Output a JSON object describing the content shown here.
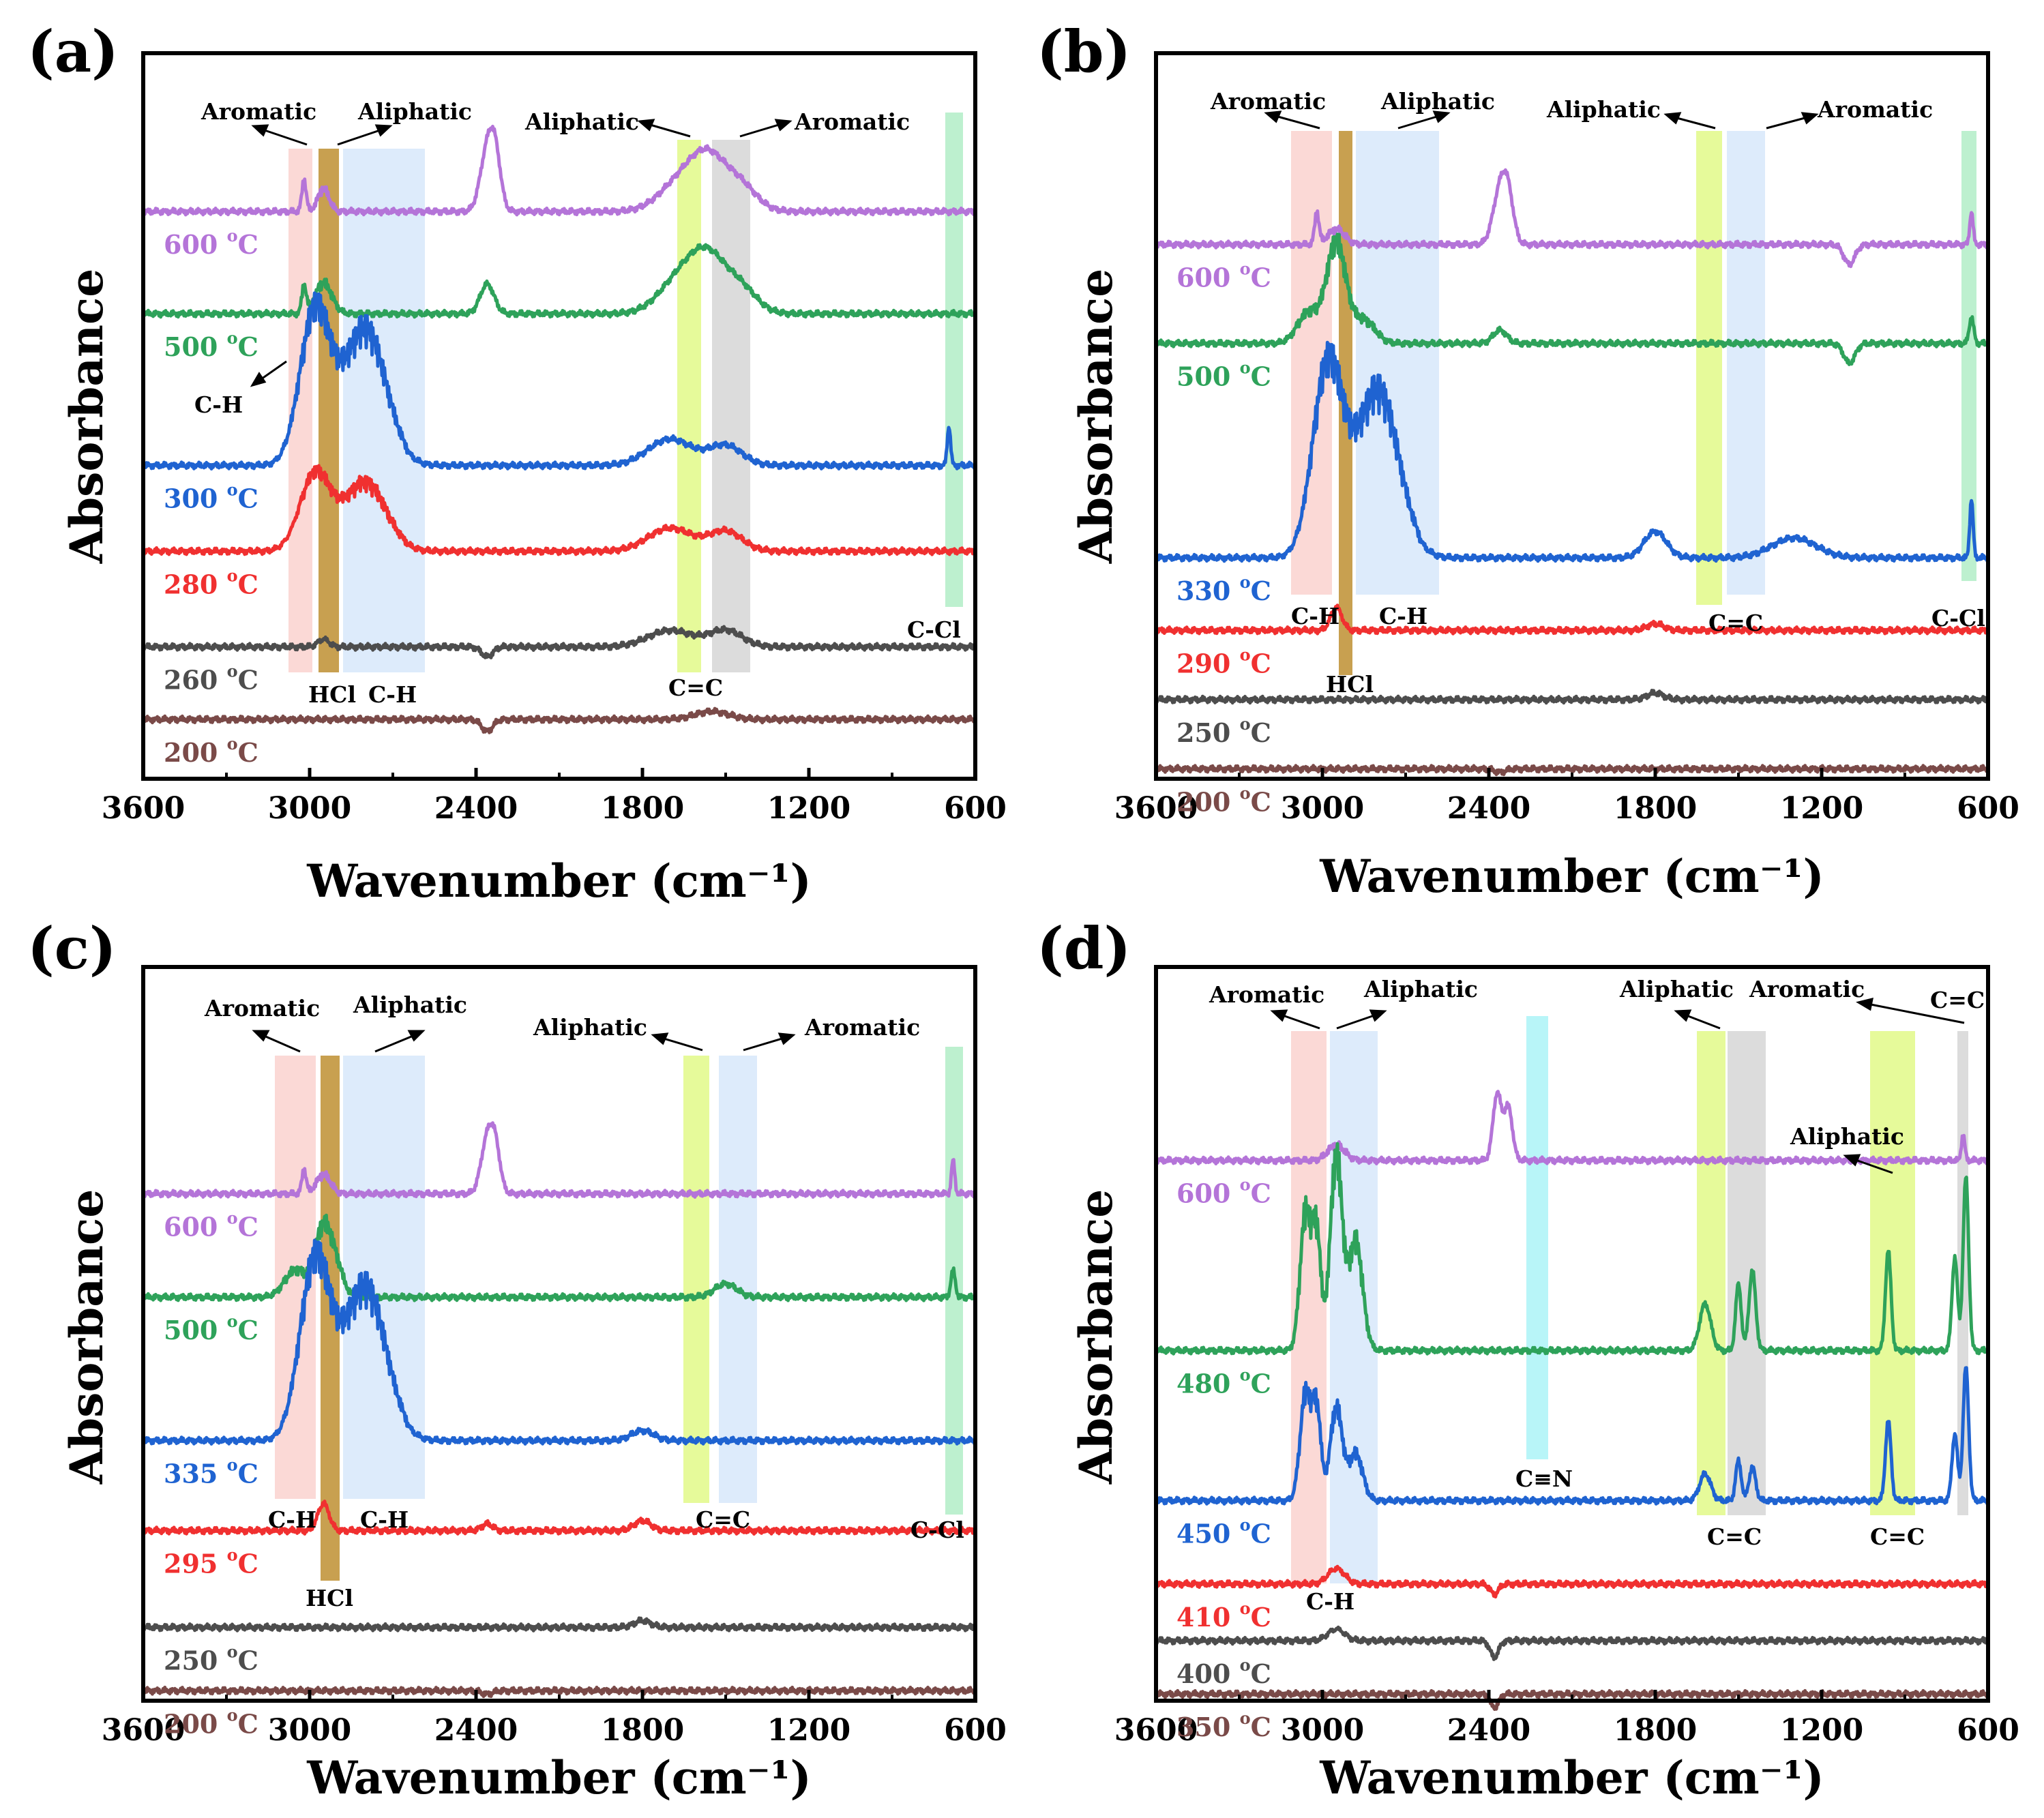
{
  "figure": {
    "panels": [
      {
        "label": "(a)",
        "xlabel": "Wavenumber (cm⁻¹)",
        "ylabel": "Absorbance",
        "xlim": [
          3600,
          600
        ],
        "xticks": [
          "3600",
          "3000",
          "2400",
          "1800",
          "1200",
          "600"
        ]
      },
      {
        "label": "(b)",
        "xlabel": "Wavenumber (cm⁻¹)",
        "ylabel": "Absorbance",
        "xlim": [
          3600,
          600
        ],
        "xticks": [
          "3600",
          "3000",
          "2400",
          "1800",
          "1200",
          "600"
        ]
      },
      {
        "label": "(c)",
        "xlabel": "Wavenumber (cm⁻¹)",
        "ylabel": "Absorbance",
        "xlim": [
          3600,
          600
        ],
        "xticks": [
          "3600",
          "3000",
          "2400",
          "1800",
          "1200",
          "600"
        ]
      },
      {
        "label": "(d)",
        "xlabel": "Wavenumber (cm⁻¹)",
        "ylabel": "Absorbance",
        "xlim": [
          3600,
          600
        ],
        "xticks": [
          "3600",
          "3000",
          "2400",
          "1800",
          "1200",
          "600"
        ]
      }
    ]
  },
  "chart_data": [
    {
      "type": "line",
      "panel": "(a)",
      "xlabel": "Wavenumber (cm⁻¹)",
      "ylabel": "Absorbance",
      "xlim": [
        3600,
        600
      ],
      "series": [
        {
          "name": "600 °C",
          "label": "600 ",
          "color": "#b474d8",
          "offset": 8.6,
          "features": [
            [
              3020,
              0.4,
              8
            ],
            [
              2950,
              0.3,
              20
            ],
            [
              2360,
              0.9,
              25
            ],
            [
              2330,
              0.7,
              20
            ],
            [
              1650,
              0.5,
              80
            ],
            [
              1560,
              0.6,
              60
            ],
            [
              1450,
              0.4,
              60
            ]
          ]
        },
        {
          "name": "500 °C",
          "label": "500 ",
          "color": "#2ea25a",
          "offset": 7.05,
          "features": [
            [
              3020,
              0.35,
              8
            ],
            [
              2950,
              0.4,
              30
            ],
            [
              2360,
              0.45,
              25
            ],
            [
              1650,
              0.6,
              80
            ],
            [
              1560,
              0.6,
              60
            ],
            [
              1450,
              0.4,
              60
            ]
          ]
        },
        {
          "name": "300 °C",
          "label": "300 ",
          "color": "#1f63d1",
          "offset": 4.75,
          "features": [
            [
              2980,
              2.0,
              55
            ],
            [
              2800,
              1.8,
              75
            ],
            [
              1700,
              0.4,
              80
            ],
            [
              1500,
              0.3,
              60
            ],
            [
              695,
              0.6,
              6
            ]
          ]
        },
        {
          "name": "280 °C",
          "label": "280 ",
          "color": "#f03030",
          "offset": 3.45,
          "features": [
            [
              2980,
              1.0,
              55
            ],
            [
              2800,
              0.9,
              75
            ],
            [
              1700,
              0.35,
              80
            ],
            [
              1500,
              0.3,
              60
            ]
          ]
        },
        {
          "name": "260 °C",
          "label": "260 ",
          "color": "#4d4d4d",
          "offset": 2.0,
          "features": [
            [
              2950,
              0.1,
              20
            ],
            [
              2360,
              -0.15,
              20
            ],
            [
              1700,
              0.25,
              80
            ],
            [
              1500,
              0.25,
              60
            ]
          ]
        },
        {
          "name": "200 °C",
          "label": "200 ",
          "color": "#7a4a48",
          "offset": 0.9,
          "features": [
            [
              2360,
              -0.18,
              20
            ],
            [
              1550,
              0.12,
              60
            ]
          ]
        }
      ]
    },
    {
      "type": "line",
      "panel": "(b)",
      "xlabel": "Wavenumber (cm⁻¹)",
      "ylabel": "Absorbance",
      "xlim": [
        3600,
        600
      ],
      "series": [
        {
          "name": "600 °C",
          "label": "600 ",
          "color": "#b474d8",
          "offset": 8.1,
          "features": [
            [
              3020,
              0.4,
              8
            ],
            [
              2950,
              0.2,
              30
            ],
            [
              2360,
              0.8,
              25
            ],
            [
              2330,
              0.6,
              20
            ],
            [
              1100,
              -0.3,
              20
            ],
            [
              660,
              0.5,
              6
            ]
          ]
        },
        {
          "name": "500 °C",
          "label": "500 ",
          "color": "#2ea25a",
          "offset": 6.6,
          "features": [
            [
              2950,
              1.3,
              35
            ],
            [
              3050,
              0.4,
              40
            ],
            [
              2850,
              0.3,
              40
            ],
            [
              2360,
              0.2,
              25
            ],
            [
              1100,
              -0.3,
              20
            ],
            [
              660,
              0.4,
              8
            ]
          ]
        },
        {
          "name": "330 °C",
          "label": "330 ",
          "color": "#1f63d1",
          "offset": 3.35,
          "features": [
            [
              2980,
              2.5,
              55
            ],
            [
              2800,
              2.2,
              75
            ],
            [
              1800,
              0.4,
              40
            ],
            [
              1300,
              0.3,
              80
            ],
            [
              660,
              0.9,
              6
            ]
          ]
        },
        {
          "name": "290 °C",
          "label": "290 ",
          "color": "#f03030",
          "offset": 2.25,
          "features": [
            [
              2950,
              0.3,
              20
            ],
            [
              1800,
              0.1,
              30
            ]
          ]
        },
        {
          "name": "250 °C",
          "label": "250 ",
          "color": "#4d4d4d",
          "offset": 1.2,
          "features": [
            [
              1800,
              0.1,
              30
            ]
          ]
        },
        {
          "name": "200 °C",
          "label": "200 ",
          "color": "#7a4a48",
          "offset": 0.15,
          "features": [
            [
              2360,
              -0.05,
              20
            ]
          ]
        }
      ]
    },
    {
      "type": "line",
      "panel": "(c)",
      "xlabel": "Wavenumber (cm⁻¹)",
      "ylabel": "Absorbance",
      "xlim": [
        3600,
        600
      ],
      "series": [
        {
          "name": "600 °C",
          "label": "600 ",
          "color": "#b474d8",
          "offset": 7.6,
          "features": [
            [
              3020,
              0.3,
              8
            ],
            [
              2950,
              0.25,
              25
            ],
            [
              2360,
              0.8,
              22
            ],
            [
              2330,
              0.6,
              18
            ],
            [
              680,
              0.5,
              6
            ]
          ]
        },
        {
          "name": "500 °C",
          "label": "500 ",
          "color": "#2ea25a",
          "offset": 6.05,
          "features": [
            [
              2950,
              0.9,
              30
            ],
            [
              3050,
              0.35,
              40
            ],
            [
              2900,
              0.3,
              25
            ],
            [
              1500,
              0.2,
              40
            ],
            [
              680,
              0.4,
              8
            ]
          ]
        },
        {
          "name": "335 °C",
          "label": "335 ",
          "color": "#1f63d1",
          "offset": 3.9,
          "features": [
            [
              2980,
              2.3,
              55
            ],
            [
              2800,
              2.0,
              75
            ],
            [
              1800,
              0.15,
              40
            ]
          ]
        },
        {
          "name": "295 °C",
          "label": "295 ",
          "color": "#f03030",
          "offset": 2.55,
          "features": [
            [
              2950,
              0.35,
              20
            ],
            [
              2360,
              0.1,
              20
            ],
            [
              1800,
              0.15,
              30
            ]
          ]
        },
        {
          "name": "250 °C",
          "label": "250 ",
          "color": "#4d4d4d",
          "offset": 1.1,
          "features": [
            [
              1800,
              0.1,
              30
            ]
          ]
        },
        {
          "name": "200 °C",
          "label": "200 ",
          "color": "#7a4a48",
          "offset": 0.15,
          "features": [
            [
              2360,
              -0.05,
              20
            ]
          ]
        }
      ]
    },
    {
      "type": "line",
      "panel": "(d)",
      "xlabel": "Wavenumber (cm⁻¹)",
      "ylabel": "Absorbance",
      "xlim": [
        3600,
        600
      ],
      "series": [
        {
          "name": "600 °C",
          "label": "600 ",
          "color": "#b474d8",
          "offset": 8.1,
          "features": [
            [
              2950,
              0.2,
              30
            ],
            [
              2370,
              1.0,
              15
            ],
            [
              2330,
              0.8,
              15
            ],
            [
              690,
              0.4,
              6
            ]
          ]
        },
        {
          "name": "480 °C",
          "label": "480 ",
          "color": "#2ea25a",
          "offset": 5.25,
          "features": [
            [
              3060,
              1.8,
              20
            ],
            [
              3020,
              1.4,
              15
            ],
            [
              2950,
              2.5,
              22
            ],
            [
              2880,
              1.4,
              25
            ],
            [
              1620,
              0.7,
              20
            ],
            [
              1500,
              1.0,
              10
            ],
            [
              1450,
              1.2,
              12
            ],
            [
              960,
              1.5,
              10
            ],
            [
              720,
              1.4,
              10
            ],
            [
              680,
              2.6,
              10
            ]
          ]
        },
        {
          "name": "450 °C",
          "label": "450 ",
          "color": "#1f63d1",
          "offset": 3.0,
          "features": [
            [
              3060,
              1.4,
              20
            ],
            [
              3020,
              1.1,
              15
            ],
            [
              2950,
              1.2,
              22
            ],
            [
              2880,
              0.6,
              25
            ],
            [
              1620,
              0.4,
              20
            ],
            [
              1500,
              0.6,
              10
            ],
            [
              1450,
              0.5,
              12
            ],
            [
              960,
              1.2,
              10
            ],
            [
              720,
              1.0,
              10
            ],
            [
              680,
              2.0,
              10
            ]
          ]
        },
        {
          "name": "410 °C",
          "label": "410 ",
          "color": "#f03030",
          "offset": 1.75,
          "features": [
            [
              2950,
              0.2,
              30
            ],
            [
              2380,
              -0.15,
              15
            ]
          ]
        },
        {
          "name": "400 °C",
          "label": "400 ",
          "color": "#4d4d4d",
          "offset": 0.9,
          "features": [
            [
              2950,
              0.15,
              30
            ],
            [
              2380,
              -0.25,
              15
            ]
          ]
        },
        {
          "name": "350 °C",
          "label": "350 ",
          "color": "#7a4a48",
          "offset": 0.1,
          "features": [
            [
              2380,
              -0.2,
              15
            ]
          ]
        }
      ]
    }
  ],
  "annotations": {
    "a": {
      "aromatic_left": "Aromatic",
      "aliphatic_left": "Aliphatic",
      "aliphatic_right": "Aliphatic",
      "aromatic_right": "Aromatic",
      "ch_arrow": "C-H",
      "hcl": "HCl",
      "ch_bottom": "C-H",
      "cc": "C=C",
      "ccl": "C-Cl"
    },
    "b": {
      "aromatic_left": "Aromatic",
      "aliphatic_left": "Aliphatic",
      "aliphatic_right": "Aliphatic",
      "aromatic_right": "Aromatic",
      "ch1": "C-H",
      "ch2": "C-H",
      "hcl": "HCl",
      "cc": "C=C",
      "ccl": "C-Cl"
    },
    "c": {
      "aromatic_left": "Aromatic",
      "aliphatic_left": "Aliphatic",
      "aliphatic_right": "Aliphatic",
      "aromatic_right": "Aromatic",
      "ch1": "C-H",
      "ch2": "C-H",
      "hcl": "HCl",
      "cc": "C=C",
      "ccl": "C-Cl"
    },
    "d": {
      "aromatic_left": "Aromatic",
      "aliphatic_left": "Aliphatic",
      "aliphatic_mid": "Aliphatic",
      "aromatic_mid": "Aromatic",
      "cc_top": "C=C",
      "aliphatic_low": "Aliphatic",
      "cn": "C≡N",
      "cc1": "C=C",
      "cc2": "C=C",
      "ch": "C-H"
    }
  },
  "unit_suffix": "C",
  "unit_sup": "o",
  "colors": {
    "pink": "#fbd9d6",
    "gold": "#c8a050",
    "blue": "#ddebfb",
    "yellowgreen": "#e6fa9a",
    "grey": "#dcdcdc",
    "mint": "#bdf0cf",
    "cyan": "#b8f5f8",
    "axis": "#000000"
  }
}
